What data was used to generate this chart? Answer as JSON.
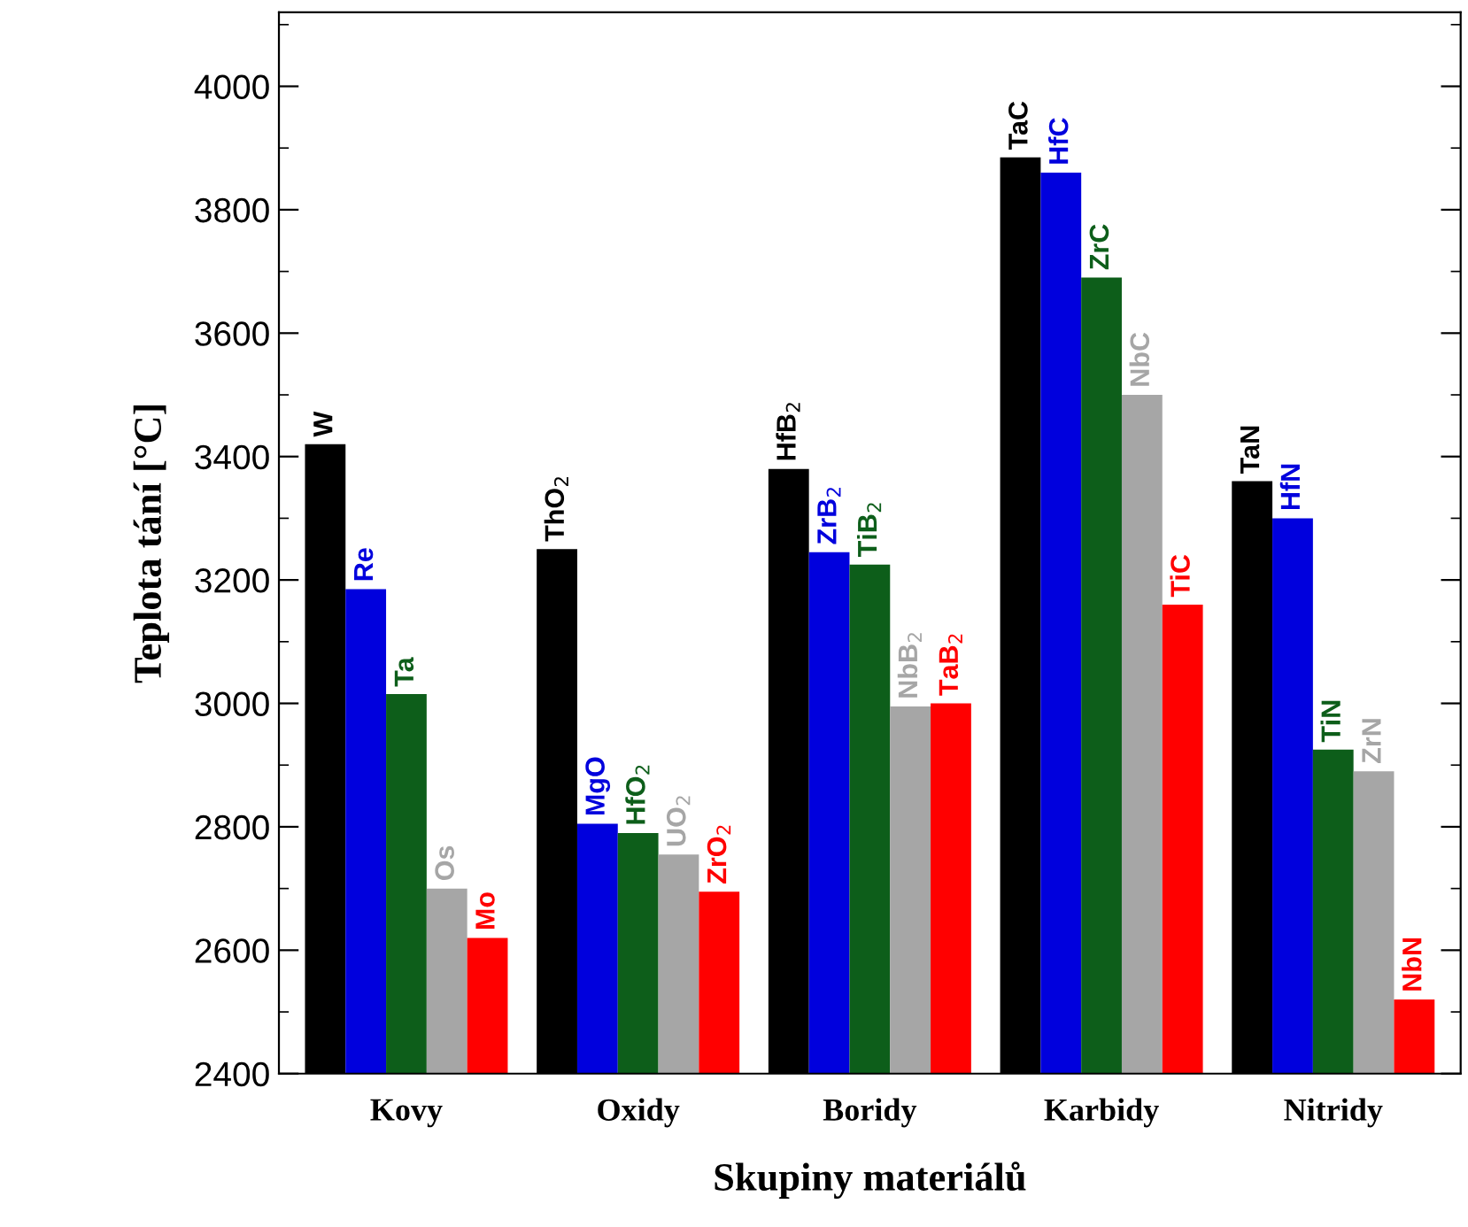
{
  "chart_data": {
    "type": "bar",
    "xlabel": "Skupiny materiálů",
    "ylabel": "Teplota tání [°C]",
    "categories": [
      "Kovy",
      "Oxidy",
      "Boridy",
      "Karbidy",
      "Nitridy"
    ],
    "series": [
      {
        "color": "#000000",
        "values": [
          3420,
          3250,
          3380,
          3885,
          3360
        ]
      },
      {
        "color": "#0000dd",
        "values": [
          3185,
          2805,
          3245,
          3860,
          3300
        ]
      },
      {
        "color": "#0d5e1a",
        "values": [
          3015,
          2790,
          3225,
          3690,
          2925
        ]
      },
      {
        "color": "#a6a6a6",
        "values": [
          2700,
          2755,
          2995,
          3500,
          2890
        ]
      },
      {
        "color": "#ff0000",
        "values": [
          2620,
          2695,
          3000,
          3160,
          2520
        ]
      }
    ],
    "annotations": [
      "W",
      "Re",
      "Ta",
      "Os",
      "Mo",
      "ThO$_{2}$",
      "MgO",
      "HfO$_{2}$",
      "UO$_{2}$",
      "ZrO$_{2}$",
      "HfB$_{2}$",
      "ZrB$_{2}$",
      "TiB$_{2}$",
      "NbB$_{2}$",
      "TaB$_{2}$",
      "TaC",
      "HfC",
      "ZrC",
      "NbC",
      "TiC",
      "TaN",
      "HfN",
      "TiN",
      "ZrN",
      "NbN"
    ],
    "ylim": [
      2400,
      4120
    ],
    "yticks": [
      2400,
      2600,
      2800,
      3000,
      3200,
      3400,
      3600,
      3800,
      4000
    ],
    "grid": false,
    "legend": false
  }
}
